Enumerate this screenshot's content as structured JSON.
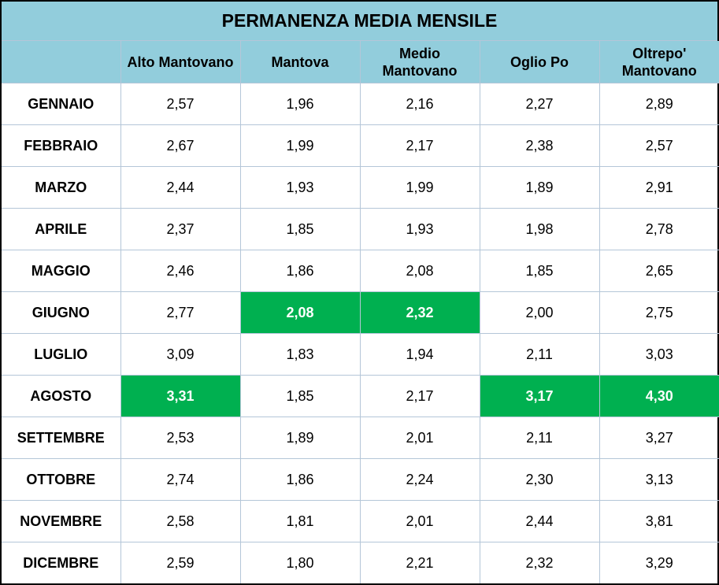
{
  "title": "PERMANENZA MEDIA MENSILE",
  "colors": {
    "header_bg": "#92cddc",
    "highlight_bg": "#00b050",
    "highlight_text": "#ffffff",
    "grid": "#b4c6d8"
  },
  "columns": [
    "",
    "Alto Mantovano",
    "Mantova",
    "Medio Mantovano",
    "Oglio Po",
    "Oltrepo' Mantovano"
  ],
  "rows": [
    {
      "month": "GENNAIO",
      "values": [
        "2,57",
        "1,96",
        "2,16",
        "2,27",
        "2,89"
      ],
      "highlight": [
        false,
        false,
        false,
        false,
        false
      ]
    },
    {
      "month": "FEBBRAIO",
      "values": [
        "2,67",
        "1,99",
        "2,17",
        "2,38",
        "2,57"
      ],
      "highlight": [
        false,
        false,
        false,
        false,
        false
      ]
    },
    {
      "month": "MARZO",
      "values": [
        "2,44",
        "1,93",
        "1,99",
        "1,89",
        "2,91"
      ],
      "highlight": [
        false,
        false,
        false,
        false,
        false
      ]
    },
    {
      "month": "APRILE",
      "values": [
        "2,37",
        "1,85",
        "1,93",
        "1,98",
        "2,78"
      ],
      "highlight": [
        false,
        false,
        false,
        false,
        false
      ]
    },
    {
      "month": "MAGGIO",
      "values": [
        "2,46",
        "1,86",
        "2,08",
        "1,85",
        "2,65"
      ],
      "highlight": [
        false,
        false,
        false,
        false,
        false
      ]
    },
    {
      "month": "GIUGNO",
      "values": [
        "2,77",
        "2,08",
        "2,32",
        "2,00",
        "2,75"
      ],
      "highlight": [
        false,
        true,
        true,
        false,
        false
      ]
    },
    {
      "month": "LUGLIO",
      "values": [
        "3,09",
        "1,83",
        "1,94",
        "2,11",
        "3,03"
      ],
      "highlight": [
        false,
        false,
        false,
        false,
        false
      ]
    },
    {
      "month": "AGOSTO",
      "values": [
        "3,31",
        "1,85",
        "2,17",
        "3,17",
        "4,30"
      ],
      "highlight": [
        true,
        false,
        false,
        true,
        true
      ]
    },
    {
      "month": "SETTEMBRE",
      "values": [
        "2,53",
        "1,89",
        "2,01",
        "2,11",
        "3,27"
      ],
      "highlight": [
        false,
        false,
        false,
        false,
        false
      ]
    },
    {
      "month": "OTTOBRE",
      "values": [
        "2,74",
        "1,86",
        "2,24",
        "2,30",
        "3,13"
      ],
      "highlight": [
        false,
        false,
        false,
        false,
        false
      ]
    },
    {
      "month": "NOVEMBRE",
      "values": [
        "2,58",
        "1,81",
        "2,01",
        "2,44",
        "3,81"
      ],
      "highlight": [
        false,
        false,
        false,
        false,
        false
      ]
    },
    {
      "month": "DICEMBRE",
      "values": [
        "2,59",
        "1,80",
        "2,21",
        "2,32",
        "3,29"
      ],
      "highlight": [
        false,
        false,
        false,
        false,
        false
      ]
    }
  ]
}
